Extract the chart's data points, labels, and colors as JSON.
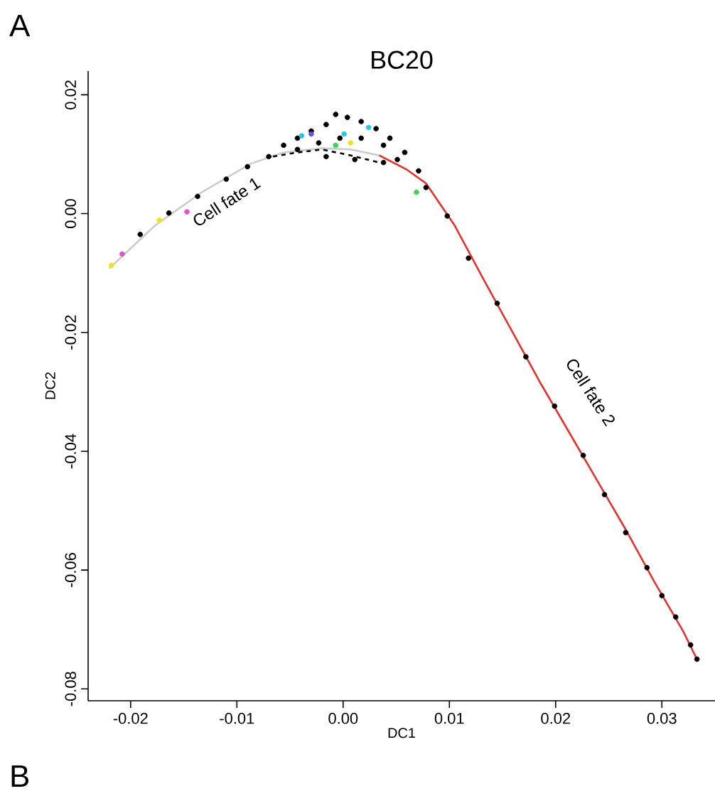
{
  "chart_data": {
    "type": "scatter",
    "title": "BC20",
    "xlabel": "DC1",
    "ylabel": "DC2",
    "xlim": [
      -0.024,
      0.035
    ],
    "ylim": [
      -0.082,
      0.024
    ],
    "xticks": [
      -0.02,
      -0.01,
      {
        "value": 0,
        "label": "0.00"
      },
      0.01,
      0.02,
      0.03
    ],
    "yticks": [
      {
        "value": 0.02,
        "label": "0.02"
      },
      {
        "value": 0.0,
        "label": "0.00"
      },
      {
        "value": -0.02,
        "label": "-0.02"
      },
      {
        "value": -0.04,
        "label": "-0.04"
      },
      {
        "value": -0.06,
        "label": "-0.06"
      },
      {
        "value": -0.08,
        "label": "-0.08"
      }
    ],
    "series": [
      {
        "color": "#000000",
        "x": [
          -0.0191,
          -0.0164,
          -0.0137,
          -0.011,
          -0.009,
          -0.007,
          -0.0056,
          -0.0043,
          -0.003,
          -0.0016,
          -0.0007,
          0.0004,
          0.0017,
          0.0031,
          0.0044,
          0.0058,
          0.0071,
          -0.0043,
          -0.0023,
          -0.0003,
          0.0017,
          0.0038,
          0.0051,
          0.0078,
          0.0098,
          0.0118,
          0.0145,
          0.0172,
          0.0199,
          0.0226,
          0.0246,
          0.0266,
          0.0286,
          0.03,
          0.0313,
          0.0327,
          0.0333,
          -0.0016,
          0.0011,
          0.0038
        ],
        "values": [
          -0.0035,
          0.0001,
          0.0029,
          0.0058,
          0.0079,
          0.0096,
          0.0115,
          0.0127,
          0.0139,
          0.015,
          0.0167,
          0.0162,
          0.0155,
          0.0143,
          0.0127,
          0.0103,
          0.0072,
          0.0108,
          0.0119,
          0.0127,
          0.0127,
          0.0115,
          0.0091,
          0.0044,
          -0.0004,
          -0.0075,
          -0.0151,
          -0.0241,
          -0.0324,
          -0.0407,
          -0.0473,
          -0.0537,
          -0.0596,
          -0.0643,
          -0.0679,
          -0.0726,
          -0.075,
          0.0096,
          0.0091,
          0.0086
        ]
      },
      {
        "color": "#29c5e6",
        "x": [
          -0.0039,
          0.0001,
          0.0024
        ],
        "values": [
          0.0131,
          0.0134,
          0.0145
        ]
      },
      {
        "color": "#6a4fd8",
        "x": [
          -0.003
        ],
        "values": [
          0.0134
        ]
      },
      {
        "color": "#e24fd0",
        "x": [
          -0.0208,
          -0.0147
        ],
        "values": [
          -0.0068,
          0.0003
        ]
      },
      {
        "color": "#f2e21a",
        "x": [
          -0.0218,
          -0.0173,
          0.0007
        ],
        "values": [
          -0.0087,
          -0.0011,
          0.0119
        ]
      },
      {
        "color": "#3fd25a",
        "x": [
          -0.0007,
          0.0069
        ],
        "values": [
          0.0115,
          0.0036
        ]
      },
      {
        "type": "line",
        "marker": "none",
        "color": "#cccccc",
        "x": [
          -0.022,
          -0.0177,
          -0.0133,
          -0.0087,
          -0.0056,
          -0.002,
          0.0007,
          0.0034,
          0.006
        ],
        "values": [
          -0.0092,
          -0.002,
          0.0036,
          0.0084,
          0.0103,
          0.011,
          0.0108,
          0.0098,
          0.0074
        ]
      },
      {
        "type": "line",
        "marker": "none",
        "color": "#000000",
        "line_style": "dashed",
        "x": [
          -0.0066,
          -0.0043,
          -0.002,
          0.0007,
          0.0034
        ],
        "values": [
          0.0096,
          0.0103,
          0.0108,
          0.0098,
          0.0086
        ]
      },
      {
        "type": "line",
        "marker": "none",
        "color": "#e8312f",
        "x": [
          0.0034,
          0.006,
          0.0078,
          0.0105,
          0.0132,
          0.0159,
          0.0185,
          0.0212,
          0.0239,
          0.0266,
          0.0293,
          0.032,
          0.0333
        ],
        "values": [
          0.0098,
          0.0074,
          0.0051,
          -0.002,
          -0.011,
          -0.0198,
          -0.0283,
          -0.0366,
          -0.0449,
          -0.0532,
          -0.062,
          -0.0703,
          -0.075
        ]
      }
    ],
    "annotations": [
      "Cell fate 1",
      "Cell fate 2",
      "A",
      "B"
    ]
  }
}
